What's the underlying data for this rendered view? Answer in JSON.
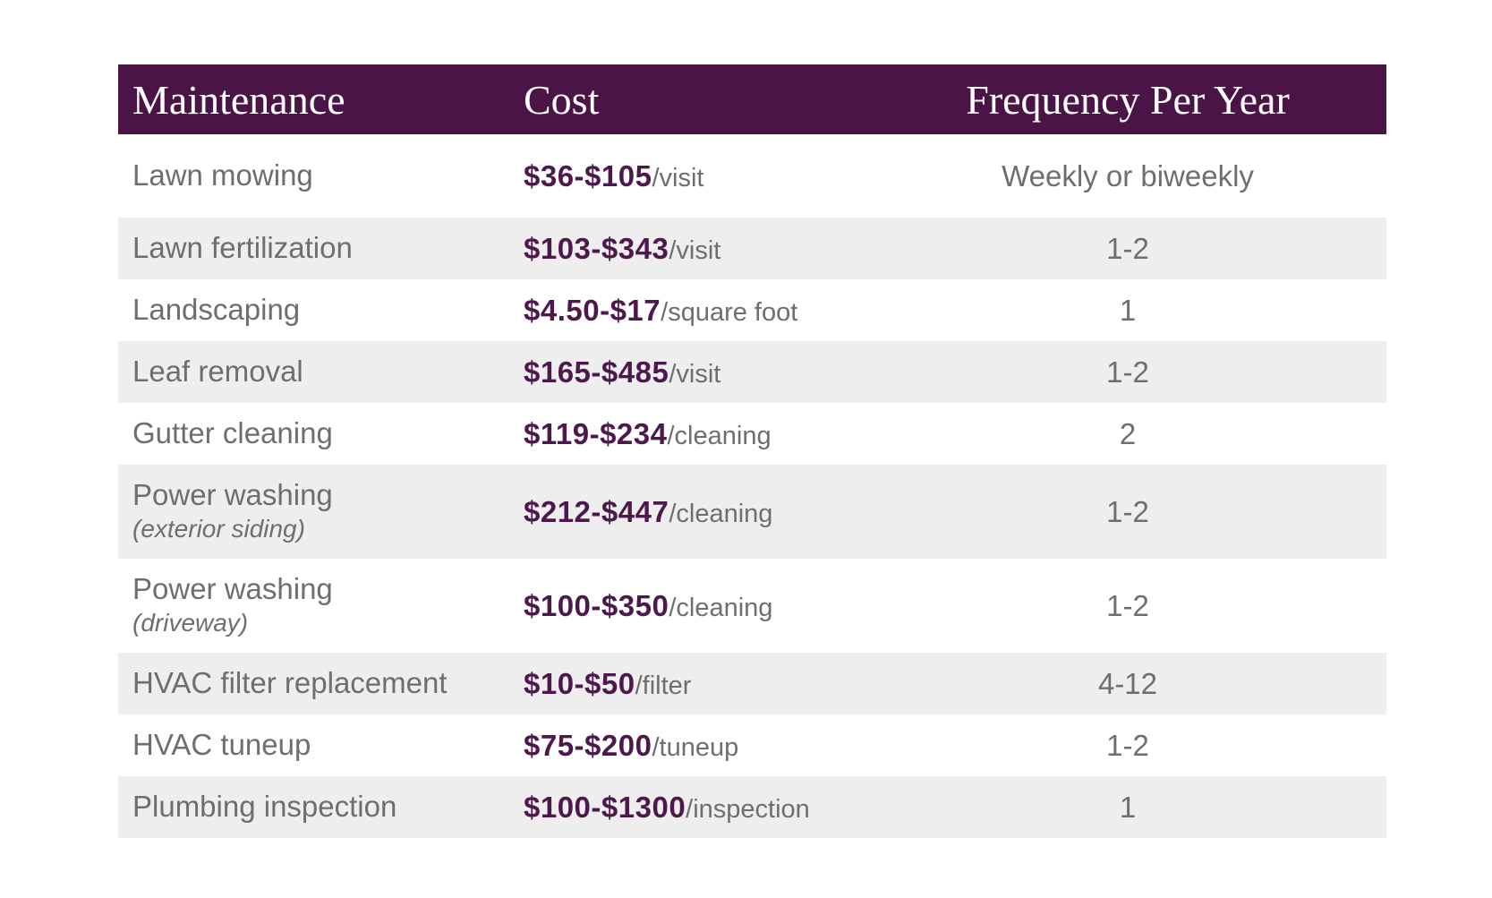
{
  "style": {
    "header_bg": "#4a1546",
    "header_text": "#ffffff",
    "price_color": "#4d194d",
    "body_text": "#6d6e70",
    "alt_row_bg": "#eeeeee"
  },
  "chart_data": {
    "type": "table",
    "title": "",
    "columns": [
      "Maintenance",
      "Cost",
      "Frequency Per Year"
    ],
    "rows": [
      {
        "maintenance": "Lawn mowing",
        "note": "",
        "price": "$36-$105",
        "unit": "/visit",
        "frequency": "Weekly or biweekly"
      },
      {
        "maintenance": "Lawn fertilization",
        "note": "",
        "price": "$103-$343",
        "unit": "/visit",
        "frequency": "1-2"
      },
      {
        "maintenance": "Landscaping",
        "note": "",
        "price": "$4.50-$17",
        "unit": "/square foot",
        "frequency": "1"
      },
      {
        "maintenance": "Leaf removal",
        "note": "",
        "price": "$165-$485",
        "unit": "/visit",
        "frequency": "1-2"
      },
      {
        "maintenance": "Gutter cleaning",
        "note": "",
        "price": "$119-$234",
        "unit": "/cleaning",
        "frequency": "2"
      },
      {
        "maintenance": "Power washing",
        "note": "(exterior siding)",
        "price": "$212-$447",
        "unit": "/cleaning",
        "frequency": "1-2"
      },
      {
        "maintenance": "Power washing",
        "note": "(driveway)",
        "price": "$100-$350",
        "unit": "/cleaning",
        "frequency": "1-2"
      },
      {
        "maintenance": "HVAC filter replacement",
        "note": "",
        "price": "$10-$50",
        "unit": "/filter",
        "frequency": "4-12"
      },
      {
        "maintenance": "HVAC tuneup",
        "note": "",
        "price": "$75-$200",
        "unit": "/tuneup",
        "frequency": "1-2"
      },
      {
        "maintenance": "Plumbing inspection",
        "note": "",
        "price": "$100-$1300",
        "unit": "/inspection",
        "frequency": "1"
      }
    ]
  }
}
